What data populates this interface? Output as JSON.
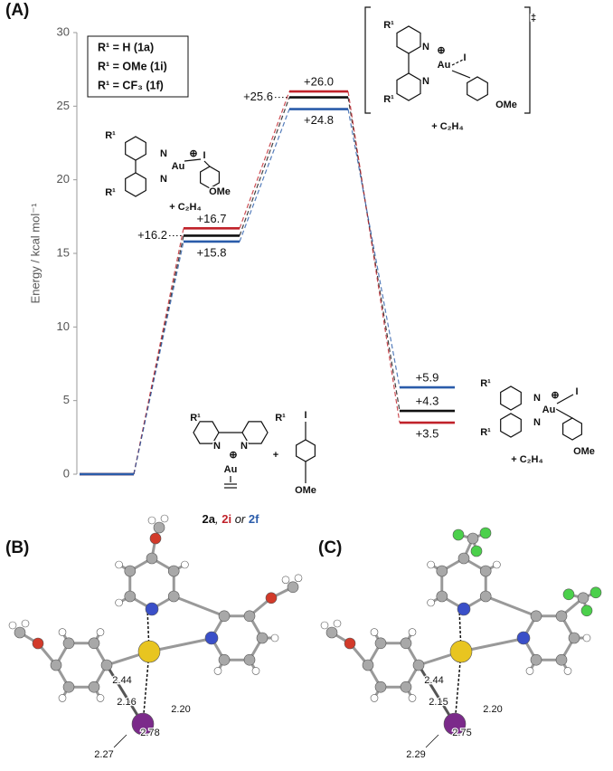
{
  "chart_data": {
    "type": "energy-profile",
    "ylabel": "Energy / kcal mol⁻¹",
    "ylim": [
      0,
      30
    ],
    "yticks": [
      0,
      5,
      10,
      15,
      20,
      25,
      30
    ],
    "series": [
      {
        "name": "R¹ = H (1a)",
        "color": "#111111",
        "values": [
          0,
          16.2,
          25.6,
          4.3
        ],
        "value_labels": [
          null,
          "+16.2",
          "+25.6",
          "+4.3"
        ]
      },
      {
        "name": "R¹ = OMe (1i)",
        "color": "#c0222a",
        "values": [
          0,
          16.7,
          26.0,
          3.5
        ],
        "value_labels": [
          null,
          "+16.7",
          "+26.0",
          "+3.5"
        ]
      },
      {
        "name": "R¹ = CF₃ (1f)",
        "color": "#2a5caa",
        "values": [
          0,
          15.8,
          24.8,
          5.9
        ],
        "value_labels": [
          null,
          "+15.8",
          "+24.8",
          "+5.9"
        ]
      }
    ]
  },
  "panels": [
    "(A)",
    "(B)",
    "(C)"
  ],
  "structures": [
    {
      "texts": [
        "R¹",
        "N",
        "Au",
        "⊕",
        "N",
        "I",
        "R¹",
        "OMe",
        "+  C₂H₄"
      ]
    },
    {
      "texts": [
        "‡",
        "R¹",
        "N",
        "⊕",
        "Au",
        "I",
        "N",
        "R¹",
        "OMe",
        "+  C₂H₄"
      ]
    },
    {
      "texts": [
        "R¹",
        "N",
        "⊕",
        "Au",
        "I",
        "N",
        "R¹",
        "OMe",
        "+  C₂H₄"
      ]
    },
    {
      "texts": [
        "R¹",
        "R¹",
        "N",
        "N",
        "⊕",
        "Au",
        "+",
        "I",
        "OMe"
      ]
    }
  ],
  "caption": [
    "2a",
    ", ",
    "2i",
    " or ",
    "2f"
  ],
  "distances": [
    [
      "2.44",
      "2.16",
      "2.20",
      "2.78",
      "2.27"
    ],
    [
      "2.44",
      "2.15",
      "2.20",
      "2.75",
      "2.29"
    ]
  ]
}
